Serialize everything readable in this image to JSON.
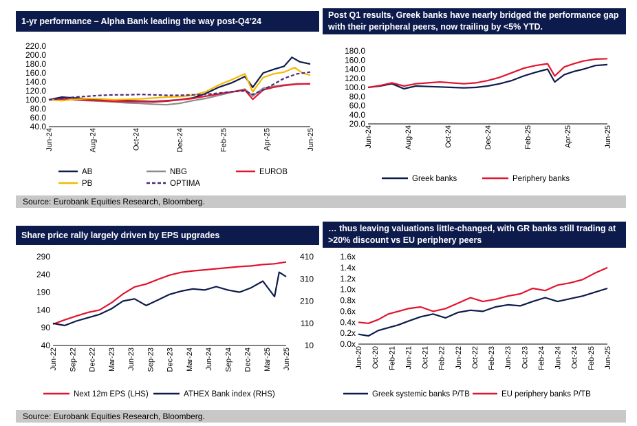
{
  "colors": {
    "header_bg": "#0d1b4c",
    "navy": "#0d1b4c",
    "red": "#e2132e",
    "grey": "#8c8c8c",
    "yellow": "#f5b800",
    "purple": "#4b2a78",
    "source_bg": "#c8c8c8"
  },
  "panels": [
    {
      "title": "1-yr performance – Alpha Bank leading the way post-Q4’24"
    },
    {
      "title": "Post Q1 results, Greek banks have nearly bridged the performance gap with their peripheral peers, now trailing by <5% YTD."
    },
    {
      "title": "Share price rally largely driven by EPS upgrades"
    },
    {
      "title": "… thus leaving valuations little-changed, with GR banks still trading at >20% discount vs EU periphery peers"
    }
  ],
  "sources": [
    "Source: Eurobank Equities Research, Bloomberg.",
    "Source: Eurobank Equities Research, Bloomberg."
  ],
  "chart_data": [
    {
      "type": "line",
      "title": "1-yr performance – Alpha Bank leading the way post-Q4’24",
      "yticks": [
        "220.0",
        "200.0",
        "180.0",
        "160.0",
        "140.0",
        "120.0",
        "100.0",
        "80.0",
        "60.0",
        "40.0"
      ],
      "ylim": [
        40,
        220
      ],
      "xticks": [
        "Jun-24",
        "Aug-24",
        "Oct-24",
        "Dec-24",
        "Feb-25",
        "Apr-25",
        "Jun-25"
      ],
      "legend_placement": "bottom",
      "series": [
        {
          "name": "AB",
          "color": "#0d1b4c",
          "dash": "",
          "x": [
            0,
            0.05,
            0.1,
            0.15,
            0.2,
            0.25,
            0.3,
            0.35,
            0.4,
            0.45,
            0.5,
            0.55,
            0.6,
            0.65,
            0.7,
            0.75,
            0.78,
            0.82,
            0.86,
            0.9,
            0.93,
            0.96,
            1
          ],
          "y": [
            100,
            106,
            104,
            102,
            101,
            99,
            98,
            97,
            96,
            98,
            100,
            104,
            114,
            128,
            138,
            152,
            128,
            160,
            168,
            175,
            195,
            185,
            180
          ]
        },
        {
          "name": "NBG",
          "color": "#8c8c8c",
          "dash": "",
          "x": [
            0,
            0.05,
            0.1,
            0.15,
            0.2,
            0.25,
            0.3,
            0.35,
            0.4,
            0.45,
            0.5,
            0.55,
            0.6,
            0.65,
            0.7,
            0.75,
            0.78,
            0.82,
            0.86,
            0.9,
            0.95,
            1
          ],
          "y": [
            100,
            102,
            100,
            98,
            97,
            95,
            93,
            92,
            90,
            89,
            92,
            98,
            103,
            110,
            117,
            124,
            108,
            126,
            130,
            133,
            136,
            135
          ]
        },
        {
          "name": "EUROB",
          "color": "#e2132e",
          "dash": "",
          "x": [
            0,
            0.05,
            0.1,
            0.15,
            0.2,
            0.25,
            0.3,
            0.35,
            0.4,
            0.45,
            0.5,
            0.55,
            0.6,
            0.65,
            0.7,
            0.75,
            0.78,
            0.82,
            0.86,
            0.9,
            0.95,
            1
          ],
          "y": [
            100,
            102,
            100,
            99,
            98,
            97,
            96,
            96,
            95,
            97,
            100,
            103,
            108,
            113,
            118,
            122,
            101,
            122,
            128,
            132,
            135,
            136
          ]
        },
        {
          "name": "PB",
          "color": "#f5b800",
          "dash": "",
          "x": [
            0,
            0.05,
            0.1,
            0.15,
            0.2,
            0.25,
            0.3,
            0.35,
            0.4,
            0.45,
            0.5,
            0.55,
            0.6,
            0.65,
            0.7,
            0.75,
            0.78,
            0.82,
            0.86,
            0.9,
            0.94,
            0.97,
            1
          ],
          "y": [
            100,
            98,
            101,
            103,
            102,
            100,
            101,
            102,
            104,
            106,
            107,
            110,
            118,
            133,
            145,
            158,
            118,
            150,
            158,
            162,
            172,
            160,
            155
          ]
        },
        {
          "name": "OPTIMA",
          "color": "#4b2a78",
          "dash": "5,3",
          "x": [
            0,
            0.05,
            0.1,
            0.15,
            0.2,
            0.25,
            0.3,
            0.35,
            0.4,
            0.45,
            0.5,
            0.55,
            0.6,
            0.65,
            0.7,
            0.75,
            0.78,
            0.82,
            0.86,
            0.9,
            0.95,
            1
          ],
          "y": [
            100,
            103,
            106,
            108,
            110,
            111,
            111,
            112,
            111,
            110,
            110,
            111,
            112,
            115,
            118,
            120,
            112,
            122,
            135,
            148,
            158,
            162
          ]
        }
      ]
    },
    {
      "type": "line",
      "title": "Post Q1 results, Greek banks have nearly bridged the performance gap with their peripheral peers, now trailing by <5% YTD.",
      "yticks": [
        "180.0",
        "160.0",
        "140.0",
        "120.0",
        "100.0",
        "80.0",
        "60.0",
        "40.0",
        "20.0"
      ],
      "ylim": [
        20,
        180
      ],
      "xticks": [
        "Jun-24",
        "Aug-24",
        "Oct-24",
        "Dec-24",
        "Feb-25",
        "Apr-25",
        "Jun-25"
      ],
      "legend_placement": "bottom",
      "series": [
        {
          "name": "Greek banks",
          "color": "#0d1b4c",
          "x": [
            0,
            0.05,
            0.1,
            0.15,
            0.2,
            0.25,
            0.3,
            0.35,
            0.4,
            0.45,
            0.5,
            0.55,
            0.6,
            0.65,
            0.7,
            0.75,
            0.78,
            0.82,
            0.86,
            0.9,
            0.95,
            1
          ],
          "y": [
            100,
            103,
            108,
            97,
            103,
            102,
            101,
            100,
            99,
            100,
            103,
            108,
            115,
            125,
            133,
            140,
            112,
            128,
            135,
            140,
            148,
            150
          ]
        },
        {
          "name": "Periphery banks",
          "color": "#e2132e",
          "x": [
            0,
            0.05,
            0.1,
            0.15,
            0.2,
            0.25,
            0.3,
            0.35,
            0.4,
            0.45,
            0.5,
            0.55,
            0.6,
            0.65,
            0.7,
            0.75,
            0.78,
            0.82,
            0.86,
            0.9,
            0.95,
            1
          ],
          "y": [
            100,
            104,
            110,
            103,
            108,
            110,
            112,
            110,
            108,
            110,
            115,
            122,
            132,
            142,
            148,
            152,
            125,
            145,
            152,
            158,
            162,
            163
          ]
        }
      ]
    },
    {
      "type": "line",
      "title": "Share price rally largely driven by EPS upgrades",
      "yticks_left": [
        "290",
        "240",
        "190",
        "140",
        "90",
        "40"
      ],
      "ylim_left": [
        40,
        290
      ],
      "yticks_right": [
        "410",
        "310",
        "210",
        "110",
        "10"
      ],
      "ylim_right": [
        10,
        410
      ],
      "xticks": [
        "Jun-22",
        "Sep-22",
        "Dec-22",
        "Mar-23",
        "Jun-23",
        "Sep-23",
        "Dec-23",
        "Mar-24",
        "Jun-24",
        "Sep-24",
        "Dec-24",
        "Mar-25",
        "Jun-25"
      ],
      "legend_placement": "bottom",
      "series": [
        {
          "name": "Next 12m EPS (LHS)",
          "axis": "left",
          "color": "#e2132e",
          "x": [
            0,
            0.05,
            0.1,
            0.15,
            0.2,
            0.25,
            0.3,
            0.35,
            0.4,
            0.45,
            0.5,
            0.55,
            0.6,
            0.65,
            0.7,
            0.75,
            0.8,
            0.85,
            0.9,
            0.95,
            1
          ],
          "y": [
            100,
            112,
            123,
            133,
            140,
            160,
            185,
            205,
            213,
            226,
            238,
            246,
            250,
            253,
            256,
            259,
            262,
            264,
            268,
            270,
            275
          ]
        },
        {
          "name": "ATHEX Bank index (RHS)",
          "axis": "right",
          "color": "#0d1b4c",
          "x": [
            0,
            0.05,
            0.1,
            0.15,
            0.2,
            0.25,
            0.3,
            0.35,
            0.4,
            0.45,
            0.5,
            0.55,
            0.6,
            0.65,
            0.7,
            0.75,
            0.8,
            0.85,
            0.9,
            0.95,
            0.97,
            1
          ],
          "y": [
            110,
            100,
            120,
            135,
            150,
            175,
            210,
            220,
            190,
            215,
            240,
            255,
            265,
            260,
            275,
            260,
            250,
            270,
            300,
            230,
            340,
            320
          ]
        }
      ]
    },
    {
      "type": "line",
      "title": "… thus leaving valuations little-changed, with GR banks still trading at >20% discount vs EU periphery peers",
      "yticks": [
        "1.6x",
        "1.4x",
        "1.2x",
        "1.0x",
        "0.8x",
        "0.6x",
        "0.4x",
        "0.2x",
        "0.0x"
      ],
      "ylim": [
        0,
        1.6
      ],
      "xticks": [
        "Jun-20",
        "Oct-20",
        "Feb-21",
        "Jun-21",
        "Oct-21",
        "Feb-22",
        "Jun-22",
        "Oct-22",
        "Feb-23",
        "Jun-23",
        "Oct-23",
        "Feb-24",
        "Jun-24",
        "Oct-24",
        "Feb-25",
        "Jun-25"
      ],
      "legend_placement": "bottom",
      "series": [
        {
          "name": "Greek systemic banks P/TB",
          "color": "#0d1b4c",
          "x": [
            0,
            0.04,
            0.08,
            0.12,
            0.16,
            0.2,
            0.25,
            0.3,
            0.35,
            0.4,
            0.45,
            0.5,
            0.55,
            0.6,
            0.65,
            0.7,
            0.75,
            0.8,
            0.85,
            0.9,
            0.95,
            1
          ],
          "y": [
            0.18,
            0.15,
            0.25,
            0.3,
            0.35,
            0.42,
            0.5,
            0.55,
            0.48,
            0.58,
            0.62,
            0.6,
            0.68,
            0.72,
            0.7,
            0.78,
            0.85,
            0.78,
            0.83,
            0.88,
            0.95,
            1.02
          ]
        },
        {
          "name": "EU periphery banks P/TB",
          "color": "#e2132e",
          "x": [
            0,
            0.04,
            0.08,
            0.12,
            0.16,
            0.2,
            0.25,
            0.3,
            0.35,
            0.4,
            0.45,
            0.5,
            0.55,
            0.6,
            0.65,
            0.7,
            0.75,
            0.8,
            0.85,
            0.9,
            0.95,
            1
          ],
          "y": [
            0.4,
            0.38,
            0.45,
            0.55,
            0.6,
            0.65,
            0.68,
            0.6,
            0.65,
            0.75,
            0.85,
            0.78,
            0.82,
            0.88,
            0.92,
            1.02,
            0.98,
            1.08,
            1.12,
            1.18,
            1.3,
            1.4
          ]
        }
      ]
    }
  ]
}
